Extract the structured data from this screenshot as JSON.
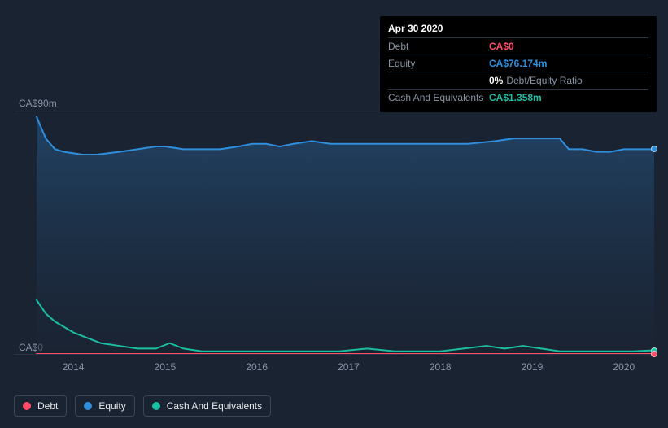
{
  "tooltip": {
    "date": "Apr 30 2020",
    "rows": [
      {
        "label": "Debt",
        "value": "CA$0",
        "color": "#ff4d6a"
      },
      {
        "label": "Equity",
        "value": "CA$76.174m",
        "color": "#2f8fdd"
      },
      {
        "label": "",
        "value": "0%",
        "suffix": "Debt/Equity Ratio",
        "color": "#ffffff"
      },
      {
        "label": "Cash And Equivalents",
        "value": "CA$1.358m",
        "color": "#1bbfa3"
      }
    ]
  },
  "chart": {
    "type": "area",
    "background": "#1a2332",
    "grid_color": "#2a3442",
    "area_gradient_top": "#22476b",
    "area_gradient_bottom": "#1a2332",
    "ylim": [
      0,
      90
    ],
    "y_labels": {
      "top": "CA$90m",
      "bottom": "CA$0"
    },
    "x_start_year": 2013.6,
    "x_end_year": 2020.33,
    "x_ticks": [
      "2014",
      "2015",
      "2016",
      "2017",
      "2018",
      "2019",
      "2020"
    ],
    "series": [
      {
        "name": "Equity",
        "color": "#2f8fdd",
        "line_width": 2,
        "data": [
          [
            2013.6,
            88
          ],
          [
            2013.7,
            80
          ],
          [
            2013.8,
            76
          ],
          [
            2013.9,
            75
          ],
          [
            2014.1,
            74
          ],
          [
            2014.25,
            74
          ],
          [
            2014.5,
            75
          ],
          [
            2014.7,
            76
          ],
          [
            2014.9,
            77
          ],
          [
            2015.0,
            77
          ],
          [
            2015.2,
            76
          ],
          [
            2015.4,
            76
          ],
          [
            2015.6,
            76
          ],
          [
            2015.8,
            77
          ],
          [
            2015.95,
            78
          ],
          [
            2016.1,
            78
          ],
          [
            2016.25,
            77
          ],
          [
            2016.4,
            78
          ],
          [
            2016.6,
            79
          ],
          [
            2016.8,
            78
          ],
          [
            2017.0,
            78
          ],
          [
            2017.2,
            78
          ],
          [
            2017.4,
            78
          ],
          [
            2017.6,
            78
          ],
          [
            2017.8,
            78
          ],
          [
            2018.0,
            78
          ],
          [
            2018.3,
            78
          ],
          [
            2018.6,
            79
          ],
          [
            2018.8,
            80
          ],
          [
            2019.0,
            80
          ],
          [
            2019.15,
            80
          ],
          [
            2019.3,
            80
          ],
          [
            2019.4,
            76
          ],
          [
            2019.55,
            76
          ],
          [
            2019.7,
            75
          ],
          [
            2019.85,
            75
          ],
          [
            2020.0,
            76
          ],
          [
            2020.15,
            76
          ],
          [
            2020.33,
            76
          ]
        ]
      },
      {
        "name": "Cash And Equivalents",
        "color": "#1bbfa3",
        "line_width": 2,
        "data": [
          [
            2013.6,
            20
          ],
          [
            2013.7,
            15
          ],
          [
            2013.8,
            12
          ],
          [
            2013.9,
            10
          ],
          [
            2014.0,
            8
          ],
          [
            2014.15,
            6
          ],
          [
            2014.3,
            4
          ],
          [
            2014.5,
            3
          ],
          [
            2014.7,
            2
          ],
          [
            2014.9,
            2
          ],
          [
            2015.05,
            4
          ],
          [
            2015.2,
            2
          ],
          [
            2015.4,
            1
          ],
          [
            2015.7,
            1
          ],
          [
            2016.0,
            1
          ],
          [
            2016.3,
            1
          ],
          [
            2016.6,
            1
          ],
          [
            2016.9,
            1
          ],
          [
            2017.2,
            2
          ],
          [
            2017.5,
            1
          ],
          [
            2017.8,
            1
          ],
          [
            2018.0,
            1
          ],
          [
            2018.25,
            2
          ],
          [
            2018.5,
            3
          ],
          [
            2018.7,
            2
          ],
          [
            2018.9,
            3
          ],
          [
            2019.1,
            2
          ],
          [
            2019.3,
            1
          ],
          [
            2019.6,
            1
          ],
          [
            2019.9,
            1
          ],
          [
            2020.1,
            1
          ],
          [
            2020.33,
            1.358
          ]
        ]
      },
      {
        "name": "Debt",
        "color": "#ff4d6a",
        "line_width": 2,
        "data": [
          [
            2013.6,
            0
          ],
          [
            2014.0,
            0
          ],
          [
            2014.5,
            0
          ],
          [
            2015.0,
            0
          ],
          [
            2015.5,
            0
          ],
          [
            2016.0,
            0
          ],
          [
            2016.5,
            0
          ],
          [
            2017.0,
            0
          ],
          [
            2017.5,
            0
          ],
          [
            2018.0,
            0
          ],
          [
            2018.5,
            0
          ],
          [
            2019.0,
            0
          ],
          [
            2019.5,
            0
          ],
          [
            2020.0,
            0
          ],
          [
            2020.33,
            0
          ]
        ]
      }
    ]
  },
  "legend": {
    "items": [
      {
        "label": "Debt",
        "color": "#ff4d6a"
      },
      {
        "label": "Equity",
        "color": "#2f8fdd"
      },
      {
        "label": "Cash And Equivalents",
        "color": "#1bbfa3"
      }
    ]
  }
}
